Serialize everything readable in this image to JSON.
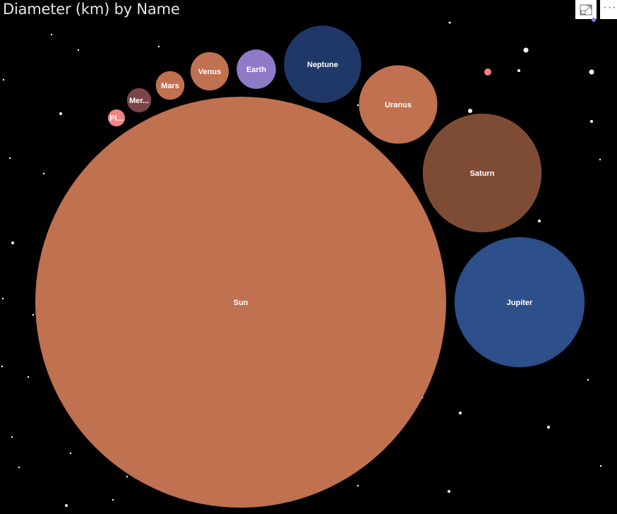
{
  "header": {
    "title": "Diameter (km) by Name",
    "focus_icon": "focus-mode-icon",
    "more_icon": "more-options-icon"
  },
  "chart_data": {
    "type": "bubble",
    "title": "Diameter (km) by Name",
    "measure": "Diameter (km)",
    "category": "Name",
    "points": [
      {
        "name": "Sun",
        "label": "Sun",
        "value": 1392700,
        "color": "#c0714f"
      },
      {
        "name": "Jupiter",
        "label": "Jupiter",
        "value": 139820,
        "color": "#2d4f8a"
      },
      {
        "name": "Saturn",
        "label": "Saturn",
        "value": 116460,
        "color": "#7e4c35"
      },
      {
        "name": "Uranus",
        "label": "Uranus",
        "value": 50724,
        "color": "#c0714f"
      },
      {
        "name": "Neptune",
        "label": "Neptune",
        "value": 49244,
        "color": "#1f3868"
      },
      {
        "name": "Earth",
        "label": "Earth",
        "value": 12742,
        "color": "#8e7ac7"
      },
      {
        "name": "Venus",
        "label": "Venus",
        "value": 12104,
        "color": "#c0714f"
      },
      {
        "name": "Mars",
        "label": "Mars",
        "value": 6779,
        "color": "#c0714f"
      },
      {
        "name": "Mercury",
        "label": "Mer...",
        "value": 4879,
        "color": "#7a4449"
      },
      {
        "name": "Pluto",
        "label": "Pl...",
        "value": 2377,
        "color": "#f08585"
      }
    ]
  }
}
